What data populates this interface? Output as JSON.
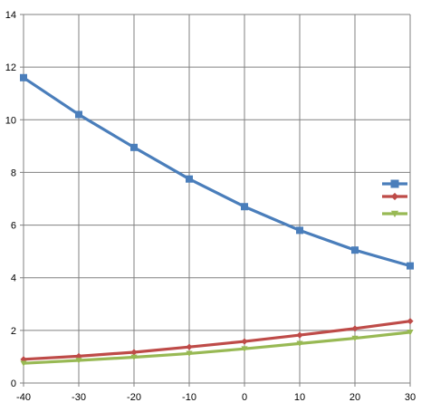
{
  "chart_data": {
    "type": "line",
    "title": "",
    "xlabel": "",
    "ylabel": "",
    "x": [
      -40,
      -30,
      -20,
      -10,
      0,
      10,
      20,
      30
    ],
    "xlim": [
      -40,
      30
    ],
    "ylim": [
      0,
      14
    ],
    "xticks": [
      "-40",
      "-30",
      "-20",
      "-10",
      "0",
      "10",
      "20",
      "30"
    ],
    "yticks": [
      "0",
      "2",
      "4",
      "6",
      "8",
      "10",
      "12",
      "14"
    ],
    "grid": true,
    "legend_position": "right",
    "series": [
      {
        "color": "#4a7ebb",
        "marker": "square",
        "values": [
          11.6,
          10.2,
          8.95,
          7.75,
          6.7,
          5.8,
          5.05,
          4.45
        ]
      },
      {
        "color": "#be4b48",
        "marker": "diamond",
        "values": [
          0.9,
          1.02,
          1.17,
          1.37,
          1.58,
          1.82,
          2.07,
          2.35
        ]
      },
      {
        "color": "#98b954",
        "marker": "triangle",
        "values": [
          0.75,
          0.86,
          0.98,
          1.12,
          1.3,
          1.5,
          1.7,
          1.93
        ]
      }
    ]
  }
}
